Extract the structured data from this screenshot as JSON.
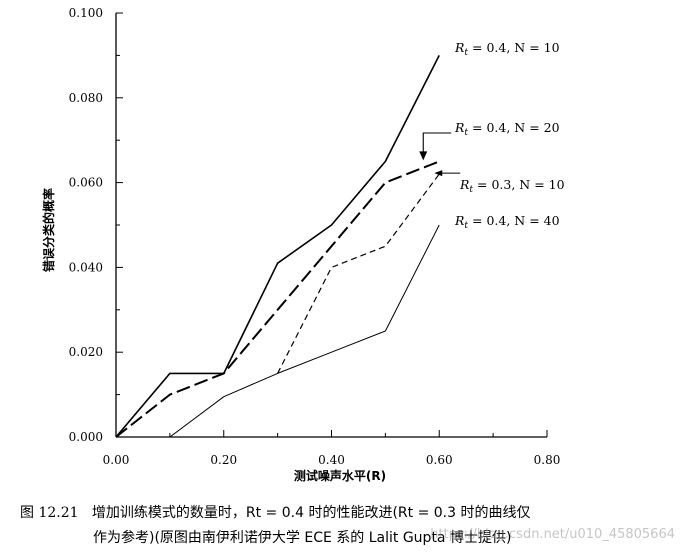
{
  "chart_data": {
    "type": "line",
    "xlabel": "测试噪声水平(R)",
    "ylabel": "错误分类的概率",
    "xlim": [
      0,
      0.8
    ],
    "ylim": [
      0,
      0.1
    ],
    "x_ticks": [
      "0.00",
      "0.20",
      "0.40",
      "0.60",
      "0.80"
    ],
    "y_ticks": [
      "0.000",
      "0.020",
      "0.040",
      "0.060",
      "0.080",
      "0.100"
    ],
    "grid": false,
    "series": [
      {
        "name": "Rt = 0.4, N = 10",
        "style": "solid",
        "x": [
          0.0,
          0.1,
          0.2,
          0.3,
          0.4,
          0.5,
          0.6
        ],
        "y": [
          0.0,
          0.015,
          0.015,
          0.041,
          0.05,
          0.065,
          0.09
        ]
      },
      {
        "name": "Rt = 0.4, N = 20",
        "style": "long-dash",
        "x": [
          0.0,
          0.1,
          0.2,
          0.3,
          0.4,
          0.5,
          0.6
        ],
        "y": [
          0.0,
          0.01,
          0.015,
          0.03,
          0.045,
          0.06,
          0.065
        ]
      },
      {
        "name": "Rt = 0.3, N = 10",
        "style": "short-dash",
        "x": [
          0.3,
          0.4,
          0.5,
          0.6
        ],
        "y": [
          0.015,
          0.04,
          0.045,
          0.062
        ]
      },
      {
        "name": "Rt = 0.4, N = 40",
        "style": "thin-solid",
        "x": [
          0.1,
          0.2,
          0.3,
          0.4,
          0.5,
          0.6
        ],
        "y": [
          0.0,
          0.0095,
          0.015,
          0.02,
          0.025,
          0.05
        ]
      }
    ]
  },
  "labels": [
    {
      "text": "Rt = 0.4, N = 10",
      "base": "R",
      "sub": "t",
      "rest": " = 0.4, N = 10"
    },
    {
      "text": "Rt = 0.4, N = 20",
      "base": "R",
      "sub": "t",
      "rest": " = 0.4, N = 20"
    },
    {
      "text": "Rt = 0.3, N = 10",
      "base": "R",
      "sub": "t",
      "rest": " = 0.3, N = 10"
    },
    {
      "text": "Rt = 0.4, N = 40",
      "base": "R",
      "sub": "t",
      "rest": " = 0.4, N = 40"
    }
  ],
  "caption": {
    "number": "图 12.21",
    "line1": "增加训练模式的数量时，Rt = 0.4 时的性能改进(Rt = 0.3 时的曲线仅",
    "line2": "作为参考)(原图由南伊利诺伊大学 ECE 系的 Lalit Gupta 博士提供)"
  },
  "watermark": "https://blog.csdn.net/u010_45805664"
}
